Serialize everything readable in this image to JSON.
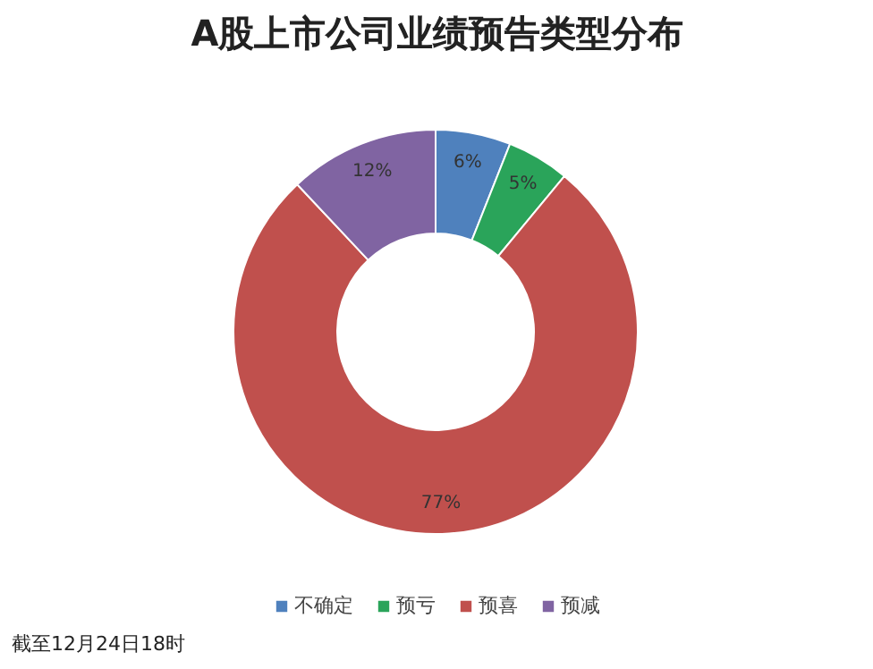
{
  "chart_data": {
    "type": "donut",
    "title": "A股上市公司业绩预告类型分布",
    "categories": [
      "不确定",
      "预亏",
      "预喜",
      "预减"
    ],
    "values": [
      6,
      5,
      77,
      12
    ],
    "colors": [
      "#4f81bd",
      "#2aa45a",
      "#c0504d",
      "#8064a2"
    ],
    "value_labels": [
      "6%",
      "5%",
      "77%",
      "12%"
    ],
    "legend": "bottom",
    "annotations": [
      "截至12月24日18时"
    ]
  }
}
